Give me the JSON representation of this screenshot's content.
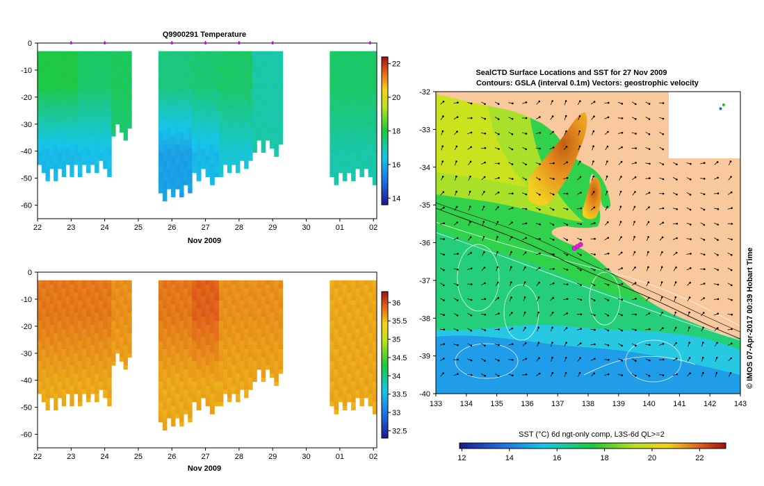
{
  "chart_data": [
    {
      "type": "heatmap",
      "title": "Q9900291  Temperature",
      "xlabel": "Nov 2009",
      "ylabel": "",
      "x_ticks": [
        "22",
        "23",
        "24",
        "25",
        "26",
        "27",
        "28",
        "29",
        "30",
        "01",
        "02"
      ],
      "y_ticks": [
        "0",
        "-10",
        "-20",
        "-30",
        "-40",
        "-50",
        "-60"
      ],
      "ylim": [
        -65,
        0
      ],
      "colorbar": {
        "ticks": [
          "14",
          "16",
          "18",
          "20",
          "22"
        ],
        "range": [
          13.6,
          22.4
        ]
      },
      "profile_markers_day": [
        23,
        24,
        26,
        27,
        28,
        29,
        31.9
      ],
      "profiles": [
        {
          "start": 22.0,
          "end": 23.2,
          "max_depth": 48,
          "upper_temp": 17.9,
          "deep_temp": 16.2
        },
        {
          "start": 23.2,
          "end": 24.2,
          "max_depth": 47,
          "upper_temp": 17.6,
          "deep_temp": 16.3
        },
        {
          "start": 24.2,
          "end": 24.8,
          "max_depth": 33,
          "upper_temp": 17.7,
          "deep_temp": 17.4
        },
        {
          "start": 25.6,
          "end": 26.6,
          "max_depth": 56,
          "upper_temp": 17.4,
          "deep_temp": 15.8
        },
        {
          "start": 26.6,
          "end": 27.4,
          "max_depth": 50,
          "upper_temp": 17.5,
          "deep_temp": 16.2
        },
        {
          "start": 27.4,
          "end": 28.4,
          "max_depth": 46,
          "upper_temp": 17.6,
          "deep_temp": 16.6
        },
        {
          "start": 28.4,
          "end": 29.3,
          "max_depth": 39,
          "upper_temp": 17.0,
          "deep_temp": 17.0
        },
        {
          "start": 30.7,
          "end": 32.1,
          "max_depth": 49,
          "upper_temp": 17.6,
          "deep_temp": 17.0
        }
      ]
    },
    {
      "type": "heatmap",
      "title": "",
      "xlabel": "Nov 2009",
      "ylabel": "",
      "x_ticks": [
        "22",
        "23",
        "24",
        "25",
        "26",
        "27",
        "28",
        "29",
        "30",
        "01",
        "02"
      ],
      "y_ticks": [
        "0",
        "-10",
        "-20",
        "-30",
        "-40",
        "-50",
        "-60"
      ],
      "ylim": [
        -65,
        0
      ],
      "colorbar": {
        "ticks": [
          "32.5",
          "33",
          "33.5",
          "34",
          "34.5",
          "35",
          "35.5",
          "36"
        ],
        "range": [
          32.3,
          36.3
        ]
      },
      "profiles": [
        {
          "start": 22.0,
          "end": 23.2,
          "max_depth": 48,
          "upper_sal": 35.8,
          "deep_sal": 35.6
        },
        {
          "start": 23.2,
          "end": 24.2,
          "max_depth": 47,
          "upper_sal": 35.8,
          "deep_sal": 35.6
        },
        {
          "start": 24.2,
          "end": 24.8,
          "max_depth": 33,
          "upper_sal": 35.7,
          "deep_sal": 35.6
        },
        {
          "start": 25.6,
          "end": 26.6,
          "max_depth": 56,
          "upper_sal": 35.8,
          "deep_sal": 35.6
        },
        {
          "start": 26.6,
          "end": 27.4,
          "max_depth": 50,
          "upper_sal": 35.9,
          "deep_sal": 35.6
        },
        {
          "start": 27.4,
          "end": 28.4,
          "max_depth": 46,
          "upper_sal": 35.7,
          "deep_sal": 35.6
        },
        {
          "start": 28.4,
          "end": 29.3,
          "max_depth": 39,
          "upper_sal": 35.7,
          "deep_sal": 35.6
        },
        {
          "start": 30.7,
          "end": 32.1,
          "max_depth": 49,
          "upper_sal": 35.6,
          "deep_sal": 35.6
        }
      ]
    },
    {
      "type": "heatmap",
      "title": "SealCTD Surface Locations and SST for 27 Nov 2009",
      "subtitle": "Contours: GSLA (interval 0.1m) Vectors: geostrophic velocity",
      "xlabel": "",
      "ylabel": "",
      "x_ticks": [
        "133",
        "134",
        "135",
        "136",
        "137",
        "138",
        "139",
        "140",
        "141",
        "142",
        "143"
      ],
      "y_ticks": [
        "-32",
        "-33",
        "-34",
        "-35",
        "-36",
        "-37",
        "-38",
        "-39",
        "-40"
      ],
      "xlim": [
        133,
        143
      ],
      "ylim": [
        -40,
        -32
      ],
      "colorbar_label": "SST (°C) 6d ngt-only comp, L3S-6d QL>=2",
      "colorbar": {
        "ticks": [
          "12",
          "14",
          "16",
          "18",
          "20",
          "22"
        ],
        "range": [
          11.9,
          23.1
        ]
      },
      "credit": "© IMOS 07-Apr-2017 00:39 Hobart Time",
      "seal_locations": [
        [
          137.55,
          -36.15
        ],
        [
          137.75,
          -36.05
        ],
        [
          137.65,
          -36.1
        ]
      ],
      "inset_points": [
        [
          142.45,
          -32.35
        ],
        [
          142.35,
          -32.45
        ]
      ]
    }
  ]
}
